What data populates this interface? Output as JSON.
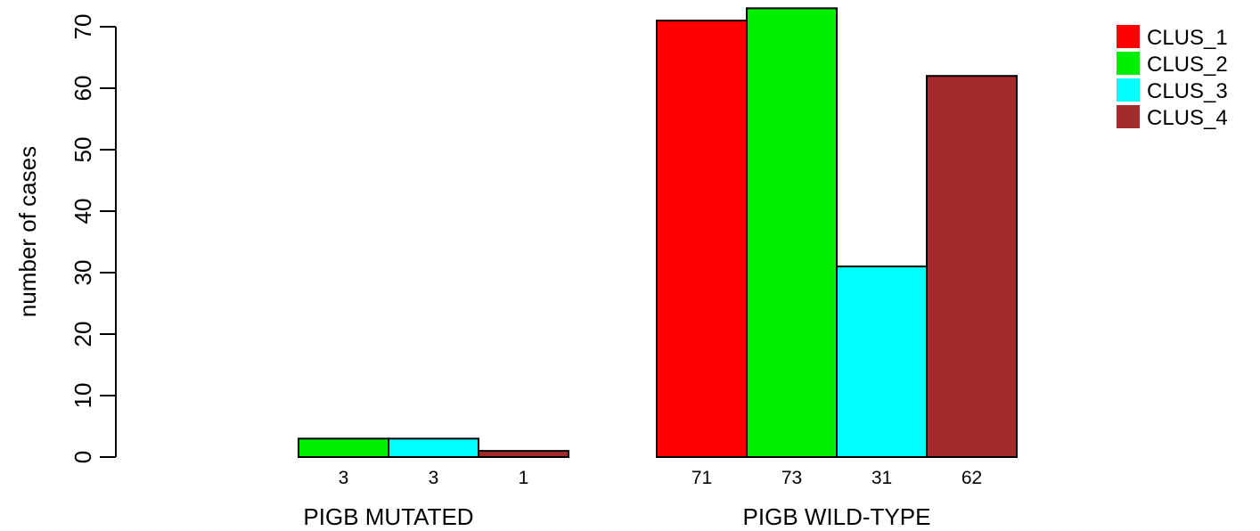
{
  "chart_data": {
    "type": "bar",
    "ylabel": "number of cases",
    "ylim": [
      0,
      70
    ],
    "yticks": [
      0,
      10,
      20,
      30,
      40,
      50,
      60,
      70
    ],
    "groups": [
      "PIGB MUTATED",
      "PIGB WILD-TYPE"
    ],
    "series": [
      {
        "name": "CLUS_1",
        "color": "#FF0000",
        "values": [
          0,
          71
        ]
      },
      {
        "name": "CLUS_2",
        "color": "#00EE00",
        "values": [
          3,
          73
        ]
      },
      {
        "name": "CLUS_3",
        "color": "#00FFFF",
        "values": [
          3,
          31
        ]
      },
      {
        "name": "CLUS_4",
        "color": "#A52A2A",
        "values": [
          1,
          62
        ]
      }
    ],
    "count_labels": [
      [
        "",
        "3",
        "3",
        "1"
      ],
      [
        "71",
        "73",
        "31",
        "62"
      ]
    ],
    "legend_position": "top-right",
    "grid": false
  }
}
